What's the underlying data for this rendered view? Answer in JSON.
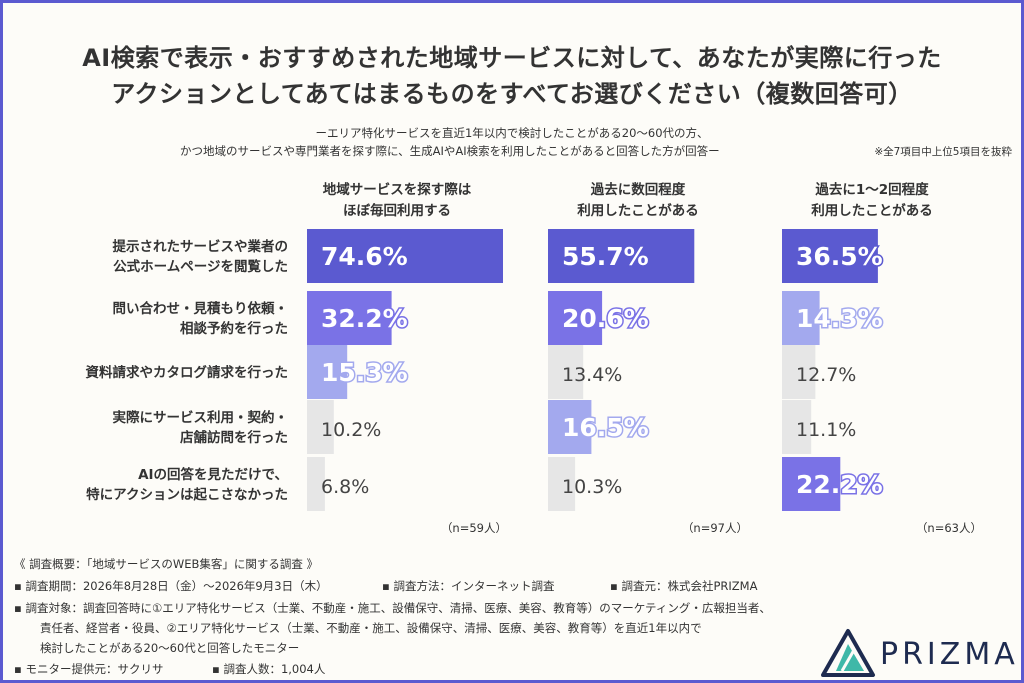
{
  "title_line1": "AI検索で表示・おすすめされた地域サービスに対して、あなたが実際に行った",
  "title_line2": "アクションとしてあてはまるものをすべてお選びください（複数回答可）",
  "subtitle_line1": "ーエリア特化サービスを直近1年以内で検討したことがある20〜60代の方、",
  "subtitle_line2": "かつ地域のサービスや専門業者を探す際に、生成AIやAI検索を利用したことがあると回答した方が回答ー",
  "note": "※全7項目中上位5項目を抜粋",
  "chart_data": {
    "type": "bar",
    "orientation": "horizontal",
    "categories": [
      [
        "提示されたサービスや業者の",
        "公式ホームページを閲覧した"
      ],
      [
        "問い合わせ・見積もり依頼・",
        "相談予約を行った"
      ],
      [
        "資料請求やカタログ請求を行った"
      ],
      [
        "実際にサービス利用・契約・",
        "店舗訪問を行った"
      ],
      [
        "AIの回答を見ただけで、",
        "特にアクションは起こさなかった"
      ]
    ],
    "unit": "%",
    "xlim": [
      0,
      80
    ],
    "grid": false,
    "legend": "none",
    "series": [
      {
        "name_lines": [
          "地域サービスを探す際は",
          "ほぼ毎回利用する"
        ],
        "values": [
          74.6,
          32.2,
          15.3,
          10.2,
          6.8
        ],
        "labels": [
          "74.6%",
          "32.2%",
          "15.3%",
          "10.2%",
          "6.8%"
        ],
        "colors": [
          "#5b5ad0",
          "#7a72e6",
          "#a3a9ee",
          "#e6e6e6",
          "#e6e6e6"
        ],
        "n_label": "（n=59人）"
      },
      {
        "name_lines": [
          "過去に数回程度",
          "利用したことがある"
        ],
        "values": [
          55.7,
          20.6,
          13.4,
          16.5,
          10.3
        ],
        "labels": [
          "55.7%",
          "20.6%",
          "13.4%",
          "16.5%",
          "10.3%"
        ],
        "colors": [
          "#5b5ad0",
          "#7a72e6",
          "#e6e6e6",
          "#a3a9ee",
          "#e6e6e6"
        ],
        "n_label": "（n=97人）"
      },
      {
        "name_lines": [
          "過去に1〜2回程度",
          "利用したことがある"
        ],
        "values": [
          36.5,
          14.3,
          12.7,
          11.1,
          22.2
        ],
        "labels": [
          "36.5%",
          "14.3%",
          "12.7%",
          "11.1%",
          "22.2%"
        ],
        "colors": [
          "#5b5ad0",
          "#a3a9ee",
          "#e6e6e6",
          "#e6e6e6",
          "#7a72e6"
        ],
        "n_label": "（n=63人）"
      }
    ]
  },
  "footer": {
    "heading": "《 調査概要：「地域サービスのWEB集客」に関する調査 》",
    "period": "▪ 調査期間：2026年8月28日（金）〜2026年9月3日（木）",
    "method": "▪ 調査方法：インターネット調査",
    "source": "▪ 調査元：株式会社PRIZMA",
    "target_line1": "▪ 調査対象：調査回答時に①エリア特化サービス（士業、不動産・施工、設備保守、清掃、医療、美容、教育等）のマーケティング・広報担当者、",
    "target_line2": "責任者、経営者・役員、②エリア特化サービス（士業、不動産・施工、設備保守、清掃、医療、美容、教育等）を直近1年以内で",
    "target_line3": "検討したことがある20〜60代と回答したモニター",
    "provider": "▪ モニター提供元：サクリサ",
    "count": "▪ 調査人数：1,004人"
  },
  "logo": {
    "text": "PRIZMA",
    "colors": [
      "#1e2b50",
      "#3fb8a8"
    ]
  }
}
